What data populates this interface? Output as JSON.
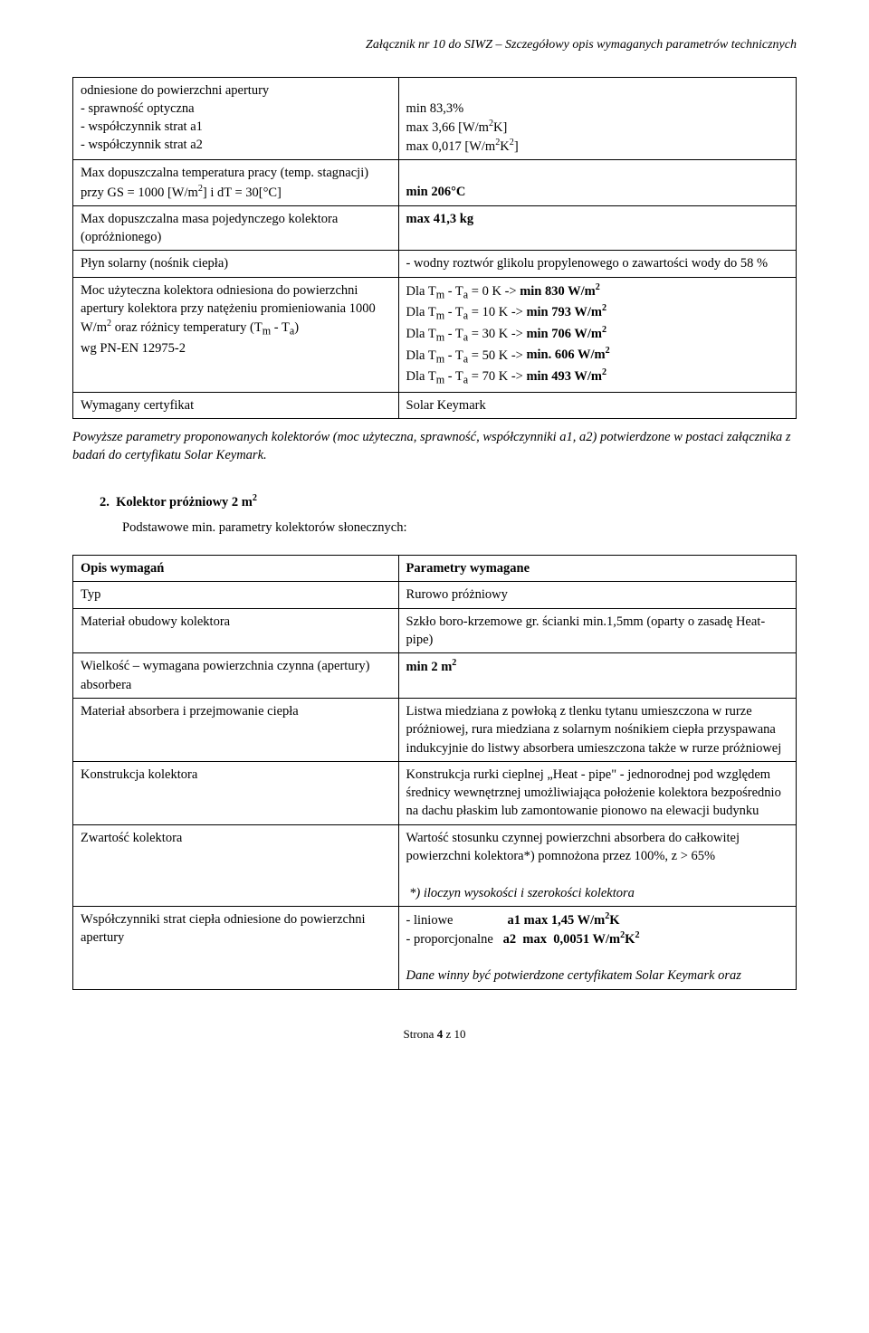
{
  "header": {
    "title": "Załącznik nr 10 do SIWZ – Szczegółowy opis wymaganych parametrów technicznych"
  },
  "table1": {
    "rows": [
      {
        "leftLines": [
          "odniesione do powierzchni apertury",
          "- sprawność optyczna",
          "- współczynnik strat a1",
          "- współczynnik strat a2"
        ],
        "rightHtml": "<br>min 83,3%<br>max 3,66 [W/m<sup>2</sup>K]<br>max 0,017 [W/m<sup>2</sup>K<sup>2</sup>]"
      },
      {
        "leftHtml": "Max dopuszczalna temperatura pracy (temp. stagnacji) przy GS = 1000 [W/m<sup>2</sup>] i dT = 30[°C]",
        "rightHtml": "<br><b>min 206°C</b>"
      },
      {
        "leftHtml": "Max dopuszczalna masa pojedynczego kolektora (opróżnionego)",
        "rightHtml": "<b>max 41,3 kg</b>"
      },
      {
        "leftHtml": "Płyn solarny (nośnik ciepła)",
        "rightHtml": "- wodny roztwór glikolu propylenowego o zawartości wody do 58 %"
      },
      {
        "leftHtml": "Moc użyteczna kolektora odniesiona do powierzchni apertury kolektora przy natężeniu promieniowania 1000 W/m<sup>2</sup> oraz różnicy temperatury (T<sub>m</sub> - T<sub>a</sub>)<br>wg PN-EN 12975-2",
        "rightHtml": "Dla T<sub>m</sub> - T<sub>a</sub> = 0 K -> <b>min 830 W/m<sup>2</sup></b><br>Dla T<sub>m</sub> - T<sub>a</sub> = 10 K -> <b>min 793 W/m<sup>2</sup></b><br>Dla T<sub>m</sub> - T<sub>a</sub> = 30 K -> <b>min 706 W/m<sup>2</sup></b><br>Dla T<sub>m</sub> - T<sub>a</sub> = 50 K -> <b>min. 606 W/m<sup>2</sup></b><br>Dla T<sub>m</sub> - T<sub>a</sub> = 70 K -> <b>min 493 W/m<sup>2</sup></b>"
      },
      {
        "leftHtml": "Wymagany certyfikat",
        "rightHtml": "Solar Keymark"
      }
    ]
  },
  "italicNote": "Powyższe parametry proponowanych kolektorów (moc użyteczna, sprawność, współczynniki a1, a2) potwierdzone w postaci załącznika z badań do certyfikatu Solar Keymark.",
  "section2": {
    "headingHtml": "2.&nbsp;&nbsp;Kolektor próżniowy 2 m<sup>2</sup>",
    "sub": "Podstawowe min. parametry kolektorów słonecznych:"
  },
  "table2": {
    "rows": [
      {
        "leftHtml": "<b>Opis wymagań</b>",
        "rightHtml": "<b>Parametry wymagane</b>"
      },
      {
        "leftHtml": "Typ",
        "rightHtml": "Rurowo próżniowy"
      },
      {
        "leftHtml": "Materiał obudowy kolektora",
        "rightHtml": "Szkło boro-krzemowe gr. ścianki min.1,5mm (oparty o zasadę Heat-pipe)"
      },
      {
        "leftHtml": "Wielkość – wymagana powierzchnia czynna (apertury) absorbera",
        "rightHtml": "<b>min 2 m<sup>2</sup></b>"
      },
      {
        "leftHtml": "Materiał absorbera i przejmowanie ciepła",
        "rightHtml": "Listwa miedziana z powłoką z tlenku tytanu umieszczona w rurze próżniowej, rura miedziana z solarnym nośnikiem ciepła przyspawana indukcyjnie do listwy absorbera umieszczona także w rurze próżniowej"
      },
      {
        "leftHtml": "Konstrukcja kolektora",
        "rightHtml": "Konstrukcja rurki cieplnej „Heat - pipe\" - jednorodnej pod względem średnicy wewnętrznej umożliwiająca położenie kolektora bezpośrednio na dachu płaskim lub zamontowanie pionowo na elewacji budynku"
      },
      {
        "leftHtml": "Zwartość kolektora",
        "rightHtml": "Wartość stosunku czynnej powierzchni absorbera do całkowitej powierzchni kolektora*) pomnożona przez 100%, z > 65%<br><br>&nbsp;<i>*) iloczyn wysokości i szerokości kolektora</i>"
      },
      {
        "leftHtml": "Współczynniki strat ciepła odniesione do powierzchni apertury",
        "rightHtml": "- liniowe<span class=\"spacer\"></span><b>a1 max 1,45 W/m<sup>2</sup>K</b><br>- proporcjonalne&nbsp;&nbsp;&nbsp;<b>a2&nbsp;&nbsp;max&nbsp;&nbsp;0,0051 W/m<sup>2</sup>K<sup>2</sup></b><br><br><i>Dane winny być potwierdzone certyfikatem Solar Keymark oraz</i>"
      }
    ]
  },
  "footer": {
    "text": "Strona 4 z 10"
  }
}
